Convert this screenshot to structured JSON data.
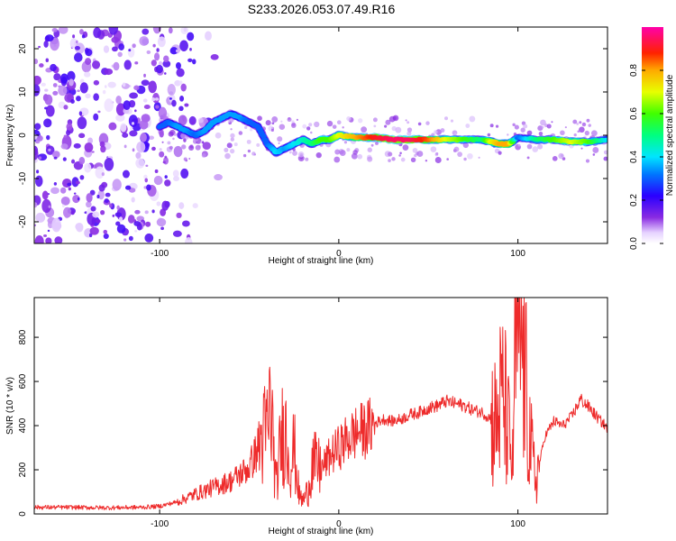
{
  "title": "S233.2026.053.07.49.R16",
  "chart_data": [
    {
      "type": "heatmap",
      "title": "S233.2026.053.07.49.R16",
      "xlabel": "Height of straight line (km)",
      "ylabel": "Frequency (Hz)",
      "xlim": [
        -170,
        150
      ],
      "ylim": [
        -25,
        25
      ],
      "xticks": [
        -100,
        0,
        100
      ],
      "xtick_labels": [
        "-100",
        "0",
        "100"
      ],
      "yticks": [
        -20,
        -10,
        0,
        10,
        20
      ],
      "ytick_labels": [
        "-20",
        "-10",
        "0",
        "10",
        "20"
      ],
      "grid": false,
      "colorbar": {
        "label": "Normalized spectral amplitude",
        "range": [
          0,
          1
        ],
        "ticks": [
          0.0,
          0.2,
          0.4,
          0.6,
          0.8
        ],
        "tick_labels": [
          "0.0",
          "0.2",
          "0.4",
          "0.6",
          "0.8"
        ],
        "colormap": "rainbow (white-violet-blue-cyan-green-yellow-orange-red-magenta)"
      },
      "ridge": {
        "x": [
          -100,
          -95,
          -90,
          -85,
          -80,
          -75,
          -70,
          -65,
          -60,
          -55,
          -50,
          -45,
          -40,
          -35,
          -30,
          -25,
          -20,
          -15,
          -10,
          -5,
          0,
          10,
          20,
          30,
          40,
          50,
          60,
          70,
          80,
          85,
          90,
          95,
          100,
          110,
          120,
          130,
          140,
          150
        ],
        "y": [
          2,
          3,
          2,
          1,
          0,
          1,
          3,
          4,
          5,
          4,
          3,
          2,
          -2,
          -4,
          -3,
          -2,
          -1,
          -2,
          -1,
          -1,
          0,
          -0.5,
          -0.5,
          -1,
          -1,
          -1,
          -1,
          -1,
          -1,
          -1.5,
          -2,
          -2,
          -0.5,
          -1,
          -1,
          -1.5,
          -1.5,
          -1
        ],
        "amp": [
          0.3,
          0.3,
          0.35,
          0.35,
          0.3,
          0.35,
          0.35,
          0.35,
          0.35,
          0.35,
          0.3,
          0.3,
          0.3,
          0.4,
          0.35,
          0.4,
          0.45,
          0.5,
          0.6,
          0.6,
          0.7,
          0.8,
          0.9,
          0.95,
          0.95,
          0.85,
          0.7,
          0.6,
          0.5,
          0.7,
          0.8,
          0.8,
          0.3,
          0.5,
          0.6,
          0.7,
          0.6,
          0.4
        ]
      },
      "noise_region_x": [
        -170,
        -90
      ]
    },
    {
      "type": "line",
      "xlabel": "Height of straight line (km)",
      "ylabel": "SNR (10 * v/v)",
      "xlim": [
        -170,
        150
      ],
      "ylim": [
        0,
        980
      ],
      "xticks": [
        -100,
        0,
        100
      ],
      "xtick_labels": [
        "-100",
        "0",
        "100"
      ],
      "yticks": [
        0,
        200,
        400,
        600,
        800
      ],
      "ytick_labels": [
        "0",
        "200",
        "400",
        "600",
        "800"
      ],
      "grid": false,
      "series": [
        {
          "color": "#ee2b2b",
          "x": [
            -170,
            -150,
            -130,
            -110,
            -100,
            -90,
            -80,
            -70,
            -60,
            -50,
            -45,
            -40,
            -38,
            -35,
            -32,
            -30,
            -27,
            -25,
            -22,
            -20,
            -17,
            -15,
            -10,
            -5,
            0,
            5,
            10,
            15,
            20,
            25,
            30,
            35,
            40,
            45,
            50,
            55,
            60,
            65,
            70,
            75,
            80,
            85,
            88,
            90,
            92,
            95,
            97,
            98,
            100,
            102,
            104,
            106,
            108,
            110,
            115,
            120,
            125,
            130,
            135,
            140,
            145,
            150
          ],
          "y": [
            30,
            30,
            28,
            30,
            35,
            55,
            90,
            120,
            150,
            210,
            300,
            380,
            500,
            120,
            350,
            390,
            220,
            300,
            80,
            60,
            110,
            230,
            200,
            260,
            300,
            340,
            370,
            380,
            410,
            430,
            420,
            430,
            450,
            460,
            480,
            490,
            510,
            500,
            490,
            470,
            460,
            430,
            400,
            500,
            530,
            350,
            200,
            600,
            920,
            800,
            600,
            400,
            250,
            150,
            350,
            420,
            400,
            440,
            520,
            480,
            430,
            390
          ]
        }
      ]
    }
  ]
}
